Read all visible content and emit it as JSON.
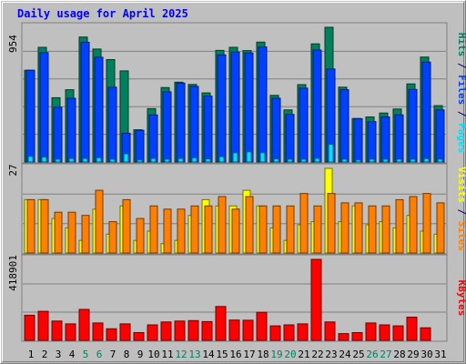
{
  "chart_data": [
    {
      "type": "bar",
      "title": "Daily usage for April 2025",
      "panel": "hits-files-pages",
      "ylabel_parts": [
        "Pages",
        "Files",
        "Hits"
      ],
      "y_top_label": "954",
      "ylim": [
        0,
        954
      ],
      "categories": [
        "1",
        "2",
        "3",
        "4",
        "5",
        "6",
        "7",
        "8",
        "9",
        "10",
        "11",
        "12",
        "13",
        "14",
        "15",
        "16",
        "17",
        "18",
        "19",
        "20",
        "21",
        "22",
        "23",
        "24",
        "25",
        "26",
        "27",
        "28",
        "29",
        "30",
        "31"
      ],
      "series": [
        {
          "name": "Hits",
          "color": "#00805c",
          "values": [
            650,
            812,
            455,
            512,
            885,
            800,
            725,
            645,
            228,
            378,
            527,
            565,
            549,
            489,
            790,
            812,
            789,
            849,
            472,
            369,
            548,
            837,
            954,
            530,
            308,
            319,
            347,
            375,
            553,
            743,
            399
          ]
        },
        {
          "name": "Files",
          "color": "#0040ff",
          "values": [
            650,
            775,
            388,
            451,
            848,
            742,
            530,
            204,
            224,
            333,
            497,
            559,
            535,
            467,
            759,
            778,
            772,
            815,
            452,
            337,
            523,
            793,
            659,
            512,
            307,
            286,
            319,
            334,
            514,
            707,
            369
          ]
        },
        {
          "name": "Pages",
          "color": "#00e0ff",
          "values": [
            40,
            35,
            20,
            25,
            25,
            30,
            20,
            58,
            15,
            25,
            20,
            25,
            30,
            22,
            38,
            65,
            72,
            66,
            22,
            20,
            20,
            26,
            125,
            20,
            15,
            20,
            20,
            20,
            20,
            24,
            20
          ]
        }
      ]
    },
    {
      "type": "bar",
      "panel": "visits-sites",
      "ylabel_parts": [
        "Sites",
        "Visits"
      ],
      "y_top_label": "27",
      "ylim": [
        0,
        27
      ],
      "categories": [
        "1",
        "2",
        "3",
        "4",
        "5",
        "6",
        "7",
        "8",
        "9",
        "10",
        "11",
        "12",
        "13",
        "14",
        "15",
        "16",
        "17",
        "18",
        "19",
        "20",
        "21",
        "22",
        "23",
        "24",
        "25",
        "26",
        "27",
        "28",
        "29",
        "30",
        "31"
      ],
      "series": [
        {
          "name": "Visits",
          "color": "#ffff00",
          "values": [
            17,
            17,
            11,
            8,
            4,
            14,
            6,
            15,
            4,
            7,
            3,
            4,
            12,
            17,
            15,
            15,
            20,
            15,
            8,
            4,
            9,
            10,
            27,
            10,
            15,
            9,
            10,
            8,
            12,
            7,
            6
          ]
        },
        {
          "name": "Sites",
          "color": "#ff8000",
          "values": [
            17,
            17,
            13,
            13,
            12,
            20,
            10,
            17,
            11,
            15,
            14,
            14,
            15,
            15,
            18,
            14,
            18,
            15,
            15,
            15,
            19,
            15,
            19,
            16,
            16,
            15,
            15,
            17,
            18,
            19,
            16
          ]
        }
      ]
    },
    {
      "type": "bar",
      "panel": "kbytes",
      "ylabel_parts": [
        "KBytes"
      ],
      "y_top_label": "418901",
      "ylim": [
        0,
        418901
      ],
      "categories": [
        "1",
        "2",
        "3",
        "4",
        "5",
        "6",
        "7",
        "8",
        "9",
        "10",
        "11",
        "12",
        "13",
        "14",
        "15",
        "16",
        "17",
        "18",
        "19",
        "20",
        "21",
        "22",
        "23",
        "24",
        "25",
        "26",
        "27",
        "28",
        "29",
        "30",
        "31"
      ],
      "series": [
        {
          "name": "KBytes",
          "color": "#ff0000",
          "values": [
            130000,
            150000,
            100000,
            85000,
            160000,
            90000,
            60000,
            85000,
            40000,
            80000,
            95000,
            100000,
            102000,
            97000,
            175000,
            105000,
            104000,
            145000,
            75000,
            80000,
            85000,
            418901,
            95000,
            35000,
            40000,
            90000,
            80000,
            75000,
            120000,
            65000,
            0
          ]
        }
      ]
    }
  ],
  "x_labels": {
    "values": [
      "1",
      "2",
      "3",
      "4",
      "5",
      "6",
      "7",
      "8",
      "9",
      "10",
      "11",
      "12",
      "13",
      "14",
      "15",
      "16",
      "17",
      "18",
      "19",
      "20",
      "21",
      "22",
      "23",
      "24",
      "25",
      "26",
      "27",
      "28",
      "29",
      "30",
      "31"
    ],
    "weekend_days": [
      "5",
      "6",
      "12",
      "13",
      "19",
      "20",
      "26",
      "27"
    ],
    "weekday_color": "#000000",
    "weekend_color": "#00805c"
  },
  "colors": {
    "background": "#bfbfbf",
    "title": "#0000ff",
    "grid": "#808080",
    "label_sep": "#000080"
  }
}
